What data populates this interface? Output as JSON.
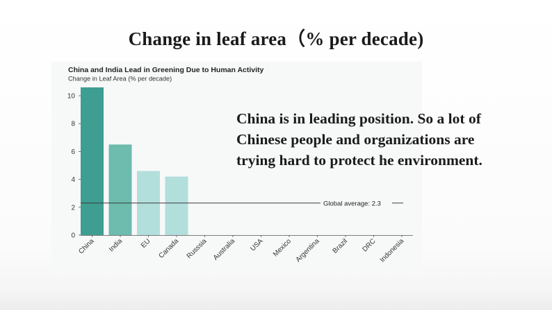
{
  "slide": {
    "title": "Change in leaf area（% per decade)",
    "body_lines": [
      "China is in leading position. So a lot of",
      "Chinese people and organizations are",
      "trying hard to protect he environment."
    ]
  },
  "chart_data": {
    "type": "bar",
    "title": "China and India Lead in Greening Due to Human Activity",
    "ylabel": "Change in Leaf Area (% per decade)",
    "xlabel": "",
    "categories": [
      "China",
      "India",
      "EU",
      "Canada",
      "Russsia",
      "Australia",
      "USA",
      "Mexico",
      "Argentina",
      "Brazil",
      "DRC",
      "Indonesia"
    ],
    "values": [
      10.6,
      6.5,
      4.6,
      4.2,
      null,
      null,
      null,
      null,
      null,
      null,
      null,
      null
    ],
    "bar_colors": [
      "#3e9e91",
      "#6dbcae",
      "#b2dfdb",
      "#b2dfdb"
    ],
    "ylim": [
      0,
      10.6
    ],
    "yticks": [
      0,
      2,
      4,
      6,
      8,
      10
    ],
    "grid": false,
    "reference_line": {
      "label": "Global average: 2.3",
      "value": 2.3
    }
  },
  "colors": {
    "axis": "#555555",
    "text": "#333333",
    "panel_bg": "#f7f8f8"
  }
}
